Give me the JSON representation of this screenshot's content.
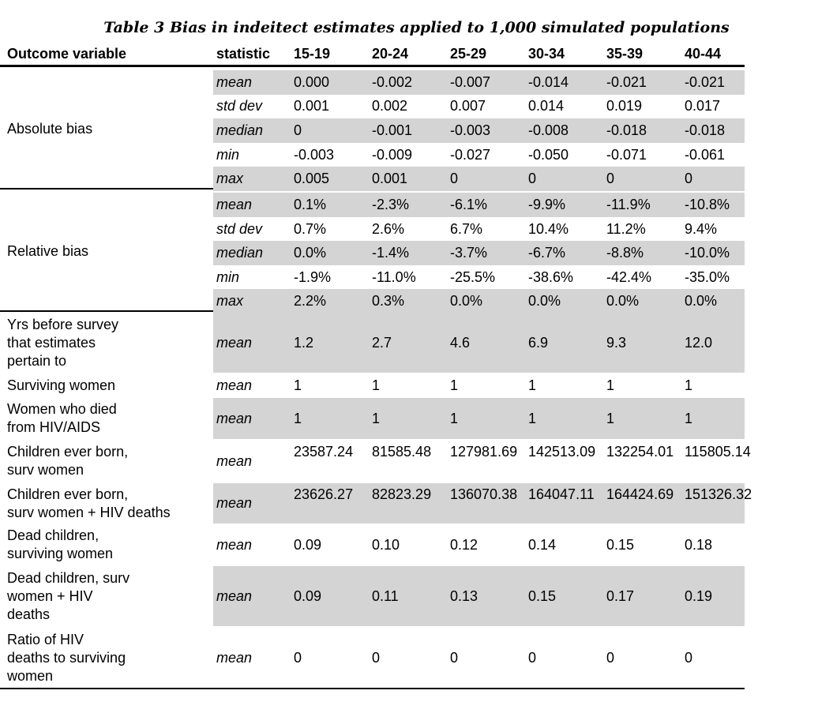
{
  "title": "Table 3 Bias in indeitect estimates applied to 1,000 simulated populations",
  "headers": [
    "Outcome variable",
    "statistic",
    "15-19",
    "20-24",
    "25-29",
    "30-34",
    "35-39",
    "40-44"
  ],
  "sections": [
    {
      "label": "Absolute bias",
      "rows": [
        {
          "stat": "mean",
          "values": [
            "0.000",
            "-0.002",
            "-0.007",
            "-0.014",
            "-0.021",
            "-0.021"
          ]
        },
        {
          "stat": "std dev",
          "values": [
            "0.001",
            "0.002",
            "0.007",
            "0.014",
            "0.019",
            "0.017"
          ]
        },
        {
          "stat": "median",
          "values": [
            "0",
            "-0.001",
            "-0.003",
            "-0.008",
            "-0.018",
            "-0.018"
          ]
        },
        {
          "stat": "min",
          "values": [
            "-0.003",
            "-0.009",
            "-0.027",
            "-0.050",
            "-0.071",
            "-0.061"
          ]
        },
        {
          "stat": "max",
          "values": [
            "0.005",
            "0.001",
            "0",
            "0",
            "0",
            "0"
          ]
        }
      ]
    },
    {
      "label": "Relative bias",
      "rows": [
        {
          "stat": "mean",
          "values": [
            "0.1%",
            "-2.3%",
            "-6.1%",
            "-9.9%",
            "-11.9%",
            "-10.8%"
          ]
        },
        {
          "stat": "std dev",
          "values": [
            "0.7%",
            "2.6%",
            "6.7%",
            "10.4%",
            "11.2%",
            "9.4%"
          ]
        },
        {
          "stat": "median",
          "values": [
            "0.0%",
            "-1.4%",
            "-3.7%",
            "-6.7%",
            "-8.8%",
            "-10.0%"
          ]
        },
        {
          "stat": "min",
          "values": [
            "-1.9%",
            "-11.0%",
            "-25.5%",
            "-38.6%",
            "-42.4%",
            "-35.0%"
          ]
        },
        {
          "stat": "max",
          "values": [
            "2.2%",
            "0.3%",
            "0.0%",
            "0.0%",
            "0.0%",
            "0.0%"
          ]
        }
      ]
    }
  ],
  "extra_rows": [
    {
      "label": "Yrs before survey\nthat estimates\npertain to",
      "stat": "mean",
      "values": [
        "1.2",
        "2.7",
        "4.6",
        "6.9",
        "9.3",
        "12.0"
      ]
    },
    {
      "label": "Surviving women",
      "stat": "mean",
      "values": [
        "1",
        "1",
        "1",
        "1",
        "1",
        "1"
      ]
    },
    {
      "label": "Women who died\nfrom HIV/AIDS",
      "stat": "mean",
      "values": [
        "1",
        "1",
        "1",
        "1",
        "1",
        "1"
      ]
    },
    {
      "label": "Children ever born,\nsurv women",
      "stat": "mean",
      "values": [
        "23587.24",
        "81585.48",
        "127981.69",
        "142513.09",
        "132254.01",
        "115805.14"
      ]
    },
    {
      "label": "Children ever born,\nsurv women + HIV deaths",
      "stat": "mean",
      "values": [
        "23626.27",
        "82823.29",
        "136070.38",
        "164047.11",
        "164424.69",
        "151326.32"
      ]
    },
    {
      "label": "Dead children,\nsurviving women",
      "stat": "mean",
      "values": [
        "0.09",
        "0.10",
        "0.12",
        "0.14",
        "0.15",
        "0.18"
      ]
    },
    {
      "label": "Dead children, surv\nwomen + HIV\ndeaths",
      "stat": "mean",
      "values": [
        "0.09",
        "0.11",
        "0.13",
        "0.15",
        "0.17",
        "0.19"
      ]
    },
    {
      "label": "Ratio of HIV\ndeaths to surviving\nwomen",
      "stat": "mean",
      "values": [
        "0",
        "0",
        "0",
        "0",
        "0",
        "0"
      ]
    }
  ]
}
